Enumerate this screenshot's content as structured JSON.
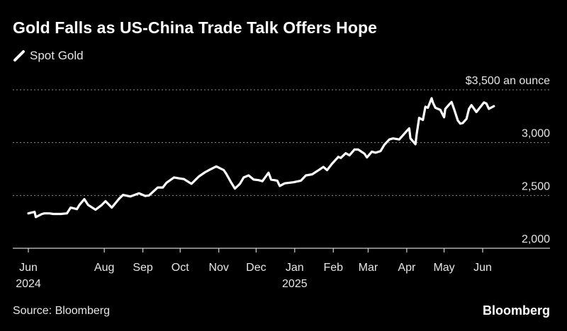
{
  "title": "Gold Falls as US-China Trade Talk Offers Hope",
  "source": "Source: Bloomberg",
  "brand": "Bloomberg",
  "colors": {
    "background": "#000000",
    "line": "#ffffff",
    "grid": "#8a8a8a",
    "text": "#e6e6e6"
  },
  "chart_data": {
    "type": "line",
    "title": "Gold Falls as US-China Trade Talk Offers Hope",
    "xlabel": "",
    "ylabel": "",
    "legend_position": "top-left",
    "grid": true,
    "ylim": [
      2000,
      3500
    ],
    "xlim": [
      "2024-05-31",
      "2025-06-30"
    ],
    "y_ticks": [
      {
        "value": 2000,
        "label": "2,000"
      },
      {
        "value": 2500,
        "label": "2,500"
      },
      {
        "value": 3000,
        "label": "3,000"
      },
      {
        "value": 3500,
        "label": "$3,500 an ounce"
      }
    ],
    "x_ticks": [
      {
        "date": "2024-06-01",
        "label": "Jun",
        "year": "2024"
      },
      {
        "date": "2024-08-01",
        "label": "Aug",
        "year": ""
      },
      {
        "date": "2024-09-01",
        "label": "Sep",
        "year": ""
      },
      {
        "date": "2024-10-01",
        "label": "Oct",
        "year": ""
      },
      {
        "date": "2024-11-01",
        "label": "Nov",
        "year": ""
      },
      {
        "date": "2024-12-01",
        "label": "Dec",
        "year": ""
      },
      {
        "date": "2025-01-01",
        "label": "Jan",
        "year": "2025"
      },
      {
        "date": "2025-02-01",
        "label": "Feb",
        "year": ""
      },
      {
        "date": "2025-03-01",
        "label": "Mar",
        "year": ""
      },
      {
        "date": "2025-04-01",
        "label": "Apr",
        "year": ""
      },
      {
        "date": "2025-05-01",
        "label": "May",
        "year": ""
      },
      {
        "date": "2025-06-01",
        "label": "Jun",
        "year": ""
      }
    ],
    "series": [
      {
        "name": "Spot Gold",
        "color": "#ffffff",
        "points": [
          [
            "2024-06-01",
            2330
          ],
          [
            "2024-06-06",
            2345
          ],
          [
            "2024-06-07",
            2295
          ],
          [
            "2024-06-12",
            2325
          ],
          [
            "2024-06-14",
            2330
          ],
          [
            "2024-06-18",
            2330
          ],
          [
            "2024-06-21",
            2325
          ],
          [
            "2024-06-27",
            2325
          ],
          [
            "2024-07-02",
            2330
          ],
          [
            "2024-07-05",
            2385
          ],
          [
            "2024-07-10",
            2370
          ],
          [
            "2024-07-12",
            2410
          ],
          [
            "2024-07-16",
            2465
          ],
          [
            "2024-07-19",
            2410
          ],
          [
            "2024-07-25",
            2365
          ],
          [
            "2024-07-30",
            2410
          ],
          [
            "2024-08-02",
            2445
          ],
          [
            "2024-08-07",
            2385
          ],
          [
            "2024-08-13",
            2470
          ],
          [
            "2024-08-16",
            2505
          ],
          [
            "2024-08-22",
            2490
          ],
          [
            "2024-08-29",
            2520
          ],
          [
            "2024-09-03",
            2495
          ],
          [
            "2024-09-06",
            2500
          ],
          [
            "2024-09-13",
            2575
          ],
          [
            "2024-09-17",
            2575
          ],
          [
            "2024-09-20",
            2620
          ],
          [
            "2024-09-26",
            2670
          ],
          [
            "2024-10-01",
            2660
          ],
          [
            "2024-10-04",
            2655
          ],
          [
            "2024-10-10",
            2610
          ],
          [
            "2024-10-16",
            2680
          ],
          [
            "2024-10-21",
            2720
          ],
          [
            "2024-10-25",
            2745
          ],
          [
            "2024-10-30",
            2775
          ],
          [
            "2024-11-05",
            2740
          ],
          [
            "2024-11-07",
            2705
          ],
          [
            "2024-11-11",
            2620
          ],
          [
            "2024-11-14",
            2565
          ],
          [
            "2024-11-18",
            2610
          ],
          [
            "2024-11-21",
            2670
          ],
          [
            "2024-11-25",
            2690
          ],
          [
            "2024-11-29",
            2650
          ],
          [
            "2024-12-03",
            2645
          ],
          [
            "2024-12-06",
            2635
          ],
          [
            "2024-12-11",
            2715
          ],
          [
            "2024-12-13",
            2650
          ],
          [
            "2024-12-18",
            2640
          ],
          [
            "2024-12-20",
            2590
          ],
          [
            "2024-12-24",
            2615
          ],
          [
            "2024-12-31",
            2625
          ],
          [
            "2025-01-06",
            2640
          ],
          [
            "2025-01-10",
            2690
          ],
          [
            "2025-01-15",
            2700
          ],
          [
            "2025-01-21",
            2745
          ],
          [
            "2025-01-24",
            2770
          ],
          [
            "2025-01-27",
            2740
          ],
          [
            "2025-01-31",
            2800
          ],
          [
            "2025-02-05",
            2865
          ],
          [
            "2025-02-07",
            2855
          ],
          [
            "2025-02-11",
            2900
          ],
          [
            "2025-02-14",
            2880
          ],
          [
            "2025-02-18",
            2935
          ],
          [
            "2025-02-21",
            2935
          ],
          [
            "2025-02-26",
            2895
          ],
          [
            "2025-02-28",
            2860
          ],
          [
            "2025-03-04",
            2915
          ],
          [
            "2025-03-07",
            2905
          ],
          [
            "2025-03-11",
            2920
          ],
          [
            "2025-03-14",
            2980
          ],
          [
            "2025-03-18",
            3030
          ],
          [
            "2025-03-21",
            3040
          ],
          [
            "2025-03-26",
            3030
          ],
          [
            "2025-04-01",
            3110
          ],
          [
            "2025-04-03",
            3135
          ],
          [
            "2025-04-04",
            3040
          ],
          [
            "2025-04-08",
            2985
          ],
          [
            "2025-04-09",
            3080
          ],
          [
            "2025-04-11",
            3235
          ],
          [
            "2025-04-14",
            3215
          ],
          [
            "2025-04-16",
            3340
          ],
          [
            "2025-04-18",
            3330
          ],
          [
            "2025-04-21",
            3420
          ],
          [
            "2025-04-22",
            3380
          ],
          [
            "2025-04-24",
            3330
          ],
          [
            "2025-04-28",
            3310
          ],
          [
            "2025-05-01",
            3240
          ],
          [
            "2025-05-02",
            3320
          ],
          [
            "2025-05-05",
            3360
          ],
          [
            "2025-05-07",
            3385
          ],
          [
            "2025-05-09",
            3320
          ],
          [
            "2025-05-12",
            3210
          ],
          [
            "2025-05-14",
            3180
          ],
          [
            "2025-05-16",
            3185
          ],
          [
            "2025-05-19",
            3225
          ],
          [
            "2025-05-21",
            3320
          ],
          [
            "2025-05-23",
            3355
          ],
          [
            "2025-05-27",
            3290
          ],
          [
            "2025-05-29",
            3320
          ],
          [
            "2025-06-02",
            3380
          ],
          [
            "2025-06-04",
            3370
          ],
          [
            "2025-06-06",
            3320
          ],
          [
            "2025-06-10",
            3345
          ]
        ]
      }
    ]
  }
}
